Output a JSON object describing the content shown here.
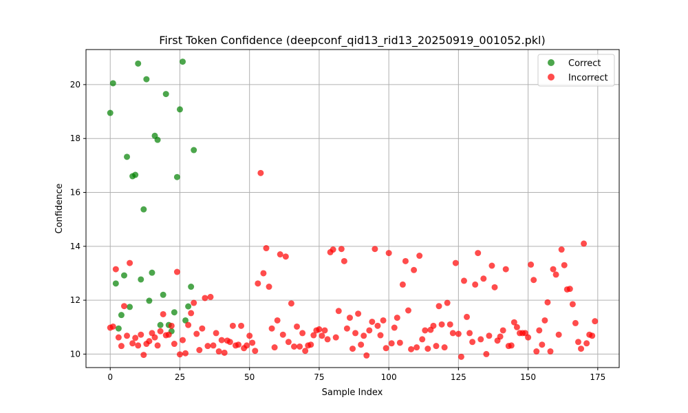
{
  "chart_data": {
    "type": "scatter",
    "title": "First Token Confidence (deepconf_qid13_rid13_20250919_001052.pkl)",
    "xlabel": "Sample Index",
    "ylabel": "Confidence",
    "xlim": [
      -8.7,
      182.7
    ],
    "ylim": [
      9.5,
      21.3
    ],
    "xticks": [
      0,
      25,
      50,
      75,
      100,
      125,
      150,
      175
    ],
    "xtick_labels": [
      "0",
      "25",
      "50",
      "75",
      "100",
      "125",
      "150",
      "175"
    ],
    "yticks": [
      10,
      12,
      14,
      16,
      18,
      20
    ],
    "ytick_labels": [
      "10",
      "12",
      "14",
      "16",
      "18",
      "20"
    ],
    "grid": true,
    "legend_position": "top-right",
    "colors": {
      "correct": "#008000",
      "incorrect": "#ff0000"
    },
    "series": [
      {
        "name": "Correct",
        "color": "#008000",
        "points": [
          [
            0,
            18.95
          ],
          [
            1,
            20.05
          ],
          [
            2,
            12.62
          ],
          [
            3,
            10.95
          ],
          [
            4,
            11.45
          ],
          [
            5,
            12.92
          ],
          [
            6,
            17.32
          ],
          [
            7,
            11.75
          ],
          [
            8,
            16.6
          ],
          [
            9,
            16.65
          ],
          [
            10,
            20.78
          ],
          [
            11,
            12.77
          ],
          [
            12,
            15.37
          ],
          [
            13,
            20.2
          ],
          [
            14,
            11.98
          ],
          [
            15,
            13.02
          ],
          [
            16,
            18.1
          ],
          [
            17,
            17.95
          ],
          [
            18,
            11.08
          ],
          [
            19,
            12.2
          ],
          [
            20,
            19.65
          ],
          [
            21,
            11.08
          ],
          [
            22,
            10.85
          ],
          [
            23,
            11.55
          ],
          [
            24,
            16.57
          ],
          [
            25,
            19.08
          ],
          [
            26,
            20.85
          ],
          [
            27,
            11.25
          ],
          [
            28,
            11.77
          ],
          [
            29,
            12.5
          ],
          [
            30,
            17.57
          ]
        ]
      },
      {
        "name": "Incorrect",
        "color": "#ff0000",
        "points": [
          [
            0,
            10.98
          ],
          [
            1,
            11.02
          ],
          [
            2,
            13.15
          ],
          [
            3,
            10.62
          ],
          [
            4,
            10.3
          ],
          [
            5,
            11.78
          ],
          [
            6,
            10.68
          ],
          [
            7,
            13.38
          ],
          [
            8,
            10.4
          ],
          [
            9,
            10.6
          ],
          [
            10,
            10.32
          ],
          [
            11,
            10.72
          ],
          [
            12,
            9.97
          ],
          [
            13,
            10.38
          ],
          [
            14,
            10.48
          ],
          [
            15,
            10.78
          ],
          [
            16,
            10.62
          ],
          [
            17,
            10.32
          ],
          [
            18,
            10.85
          ],
          [
            19,
            11.48
          ],
          [
            20,
            10.7
          ],
          [
            21,
            10.72
          ],
          [
            22,
            11.05
          ],
          [
            23,
            10.38
          ],
          [
            24,
            13.05
          ],
          [
            25,
            9.99
          ],
          [
            26,
            10.52
          ],
          [
            27,
            10.03
          ],
          [
            28,
            11.08
          ],
          [
            29,
            11.52
          ],
          [
            30,
            11.9
          ],
          [
            31,
            10.75
          ],
          [
            32,
            10.15
          ],
          [
            33,
            10.95
          ],
          [
            34,
            12.08
          ],
          [
            35,
            10.3
          ],
          [
            36,
            12.12
          ],
          [
            37,
            10.32
          ],
          [
            38,
            10.78
          ],
          [
            39,
            10.1
          ],
          [
            40,
            10.52
          ],
          [
            41,
            10.05
          ],
          [
            42,
            10.5
          ],
          [
            43,
            10.45
          ],
          [
            44,
            11.05
          ],
          [
            45,
            10.32
          ],
          [
            46,
            10.35
          ],
          [
            47,
            11.05
          ],
          [
            48,
            10.22
          ],
          [
            49,
            10.32
          ],
          [
            50,
            10.68
          ],
          [
            51,
            10.42
          ],
          [
            52,
            10.12
          ],
          [
            53,
            12.62
          ],
          [
            54,
            16.72
          ],
          [
            55,
            13.0
          ],
          [
            56,
            13.93
          ],
          [
            57,
            12.5
          ],
          [
            58,
            10.95
          ],
          [
            59,
            10.25
          ],
          [
            60,
            11.25
          ],
          [
            61,
            13.7
          ],
          [
            62,
            10.72
          ],
          [
            63,
            13.62
          ],
          [
            64,
            10.45
          ],
          [
            65,
            11.88
          ],
          [
            66,
            10.28
          ],
          [
            67,
            11.02
          ],
          [
            68,
            10.28
          ],
          [
            69,
            10.78
          ],
          [
            70,
            10.12
          ],
          [
            71,
            10.32
          ],
          [
            72,
            10.35
          ],
          [
            73,
            10.7
          ],
          [
            74,
            10.88
          ],
          [
            75,
            10.92
          ],
          [
            76,
            10.68
          ],
          [
            77,
            10.88
          ],
          [
            78,
            10.55
          ],
          [
            79,
            13.78
          ],
          [
            80,
            13.88
          ],
          [
            81,
            10.62
          ],
          [
            82,
            11.6
          ],
          [
            83,
            13.9
          ],
          [
            84,
            13.45
          ],
          [
            85,
            10.95
          ],
          [
            86,
            11.35
          ],
          [
            87,
            10.2
          ],
          [
            88,
            10.78
          ],
          [
            89,
            11.5
          ],
          [
            90,
            10.35
          ],
          [
            91,
            10.68
          ],
          [
            92,
            9.95
          ],
          [
            93,
            10.88
          ],
          [
            94,
            11.2
          ],
          [
            95,
            13.9
          ],
          [
            96,
            11.05
          ],
          [
            97,
            10.7
          ],
          [
            98,
            11.25
          ],
          [
            99,
            10.22
          ],
          [
            100,
            13.75
          ],
          [
            101,
            10.4
          ],
          [
            102,
            10.98
          ],
          [
            103,
            11.35
          ],
          [
            104,
            10.42
          ],
          [
            105,
            12.58
          ],
          [
            106,
            13.45
          ],
          [
            107,
            11.62
          ],
          [
            108,
            10.18
          ],
          [
            109,
            13.12
          ],
          [
            110,
            10.25
          ],
          [
            111,
            13.65
          ],
          [
            112,
            10.55
          ],
          [
            113,
            10.88
          ],
          [
            114,
            10.2
          ],
          [
            115,
            10.9
          ],
          [
            116,
            11.05
          ],
          [
            117,
            10.3
          ],
          [
            118,
            11.78
          ],
          [
            119,
            11.1
          ],
          [
            120,
            10.25
          ],
          [
            121,
            11.9
          ],
          [
            122,
            11.1
          ],
          [
            123,
            10.78
          ],
          [
            124,
            13.38
          ],
          [
            125,
            10.75
          ],
          [
            126,
            9.9
          ],
          [
            127,
            12.72
          ],
          [
            128,
            11.38
          ],
          [
            129,
            10.78
          ],
          [
            130,
            10.45
          ],
          [
            131,
            12.58
          ],
          [
            132,
            13.75
          ],
          [
            133,
            10.55
          ],
          [
            134,
            12.8
          ],
          [
            135,
            10.0
          ],
          [
            136,
            10.68
          ],
          [
            137,
            13.28
          ],
          [
            138,
            12.48
          ],
          [
            139,
            10.5
          ],
          [
            140,
            10.65
          ],
          [
            141,
            10.88
          ],
          [
            142,
            13.15
          ],
          [
            143,
            10.3
          ],
          [
            144,
            10.32
          ],
          [
            145,
            11.18
          ],
          [
            146,
            11.0
          ],
          [
            147,
            10.78
          ],
          [
            148,
            10.78
          ],
          [
            149,
            10.78
          ],
          [
            150,
            10.62
          ],
          [
            151,
            13.32
          ],
          [
            152,
            12.75
          ],
          [
            153,
            10.1
          ],
          [
            154,
            10.88
          ],
          [
            155,
            10.35
          ],
          [
            156,
            11.25
          ],
          [
            157,
            11.92
          ],
          [
            158,
            10.1
          ],
          [
            159,
            13.15
          ],
          [
            160,
            12.95
          ],
          [
            161,
            10.72
          ],
          [
            162,
            13.88
          ],
          [
            163,
            13.3
          ],
          [
            164,
            12.4
          ],
          [
            165,
            12.42
          ],
          [
            166,
            11.85
          ],
          [
            167,
            11.15
          ],
          [
            168,
            10.45
          ],
          [
            169,
            10.2
          ],
          [
            170,
            14.1
          ],
          [
            171,
            10.4
          ],
          [
            172,
            10.72
          ],
          [
            173,
            10.68
          ],
          [
            174,
            11.22
          ]
        ]
      }
    ]
  }
}
